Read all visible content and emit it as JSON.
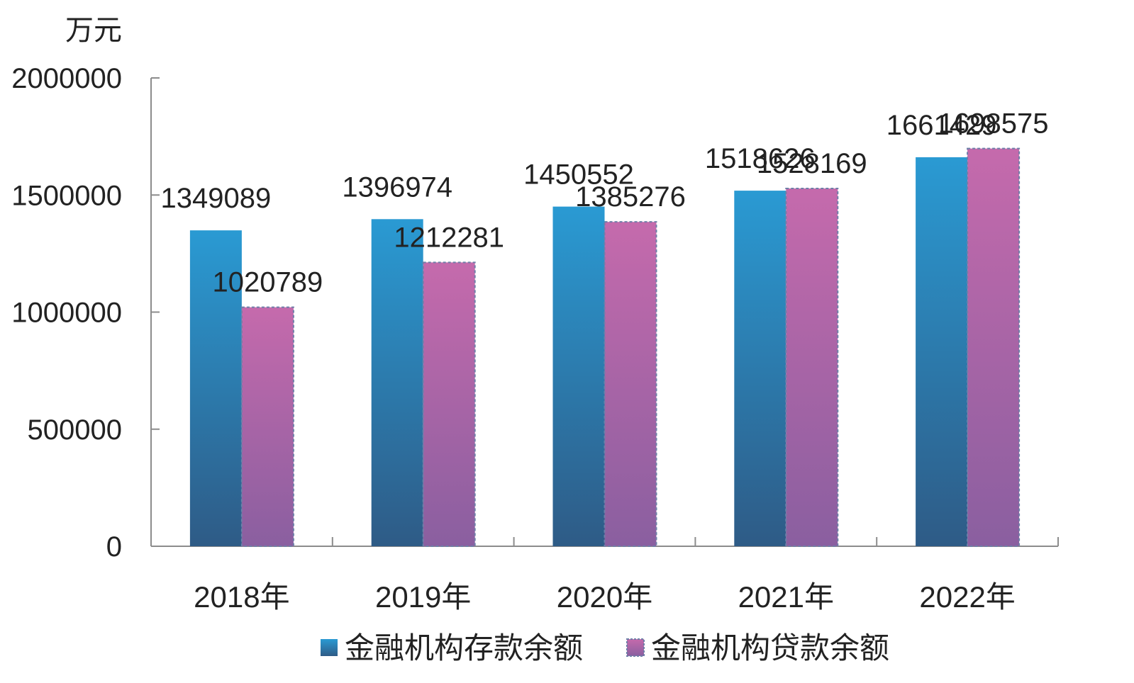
{
  "chart_data": {
    "type": "bar",
    "unit_label": "万元",
    "categories": [
      "2018年",
      "2019年",
      "2020年",
      "2021年",
      "2022年"
    ],
    "series": [
      {
        "name": "金融机构存款余额",
        "values": [
          1349089,
          1396974,
          1450552,
          1518626,
          1661429
        ]
      },
      {
        "name": "金融机构贷款余额",
        "values": [
          1020789,
          1212281,
          1385276,
          1528169,
          1698575
        ]
      }
    ],
    "ylim": [
      0,
      2000000
    ],
    "yticks": [
      "0",
      "500000",
      "1000000",
      "1500000",
      "2000000"
    ],
    "grid": false,
    "legend": "bottom",
    "colors": {
      "deposit_top": "#2A9AD3",
      "deposit_bottom": "#2E5B86",
      "loan_top": "#C56AAC",
      "loan_bottom": "#8A5FA0",
      "axis": "#8C8C8C"
    }
  }
}
